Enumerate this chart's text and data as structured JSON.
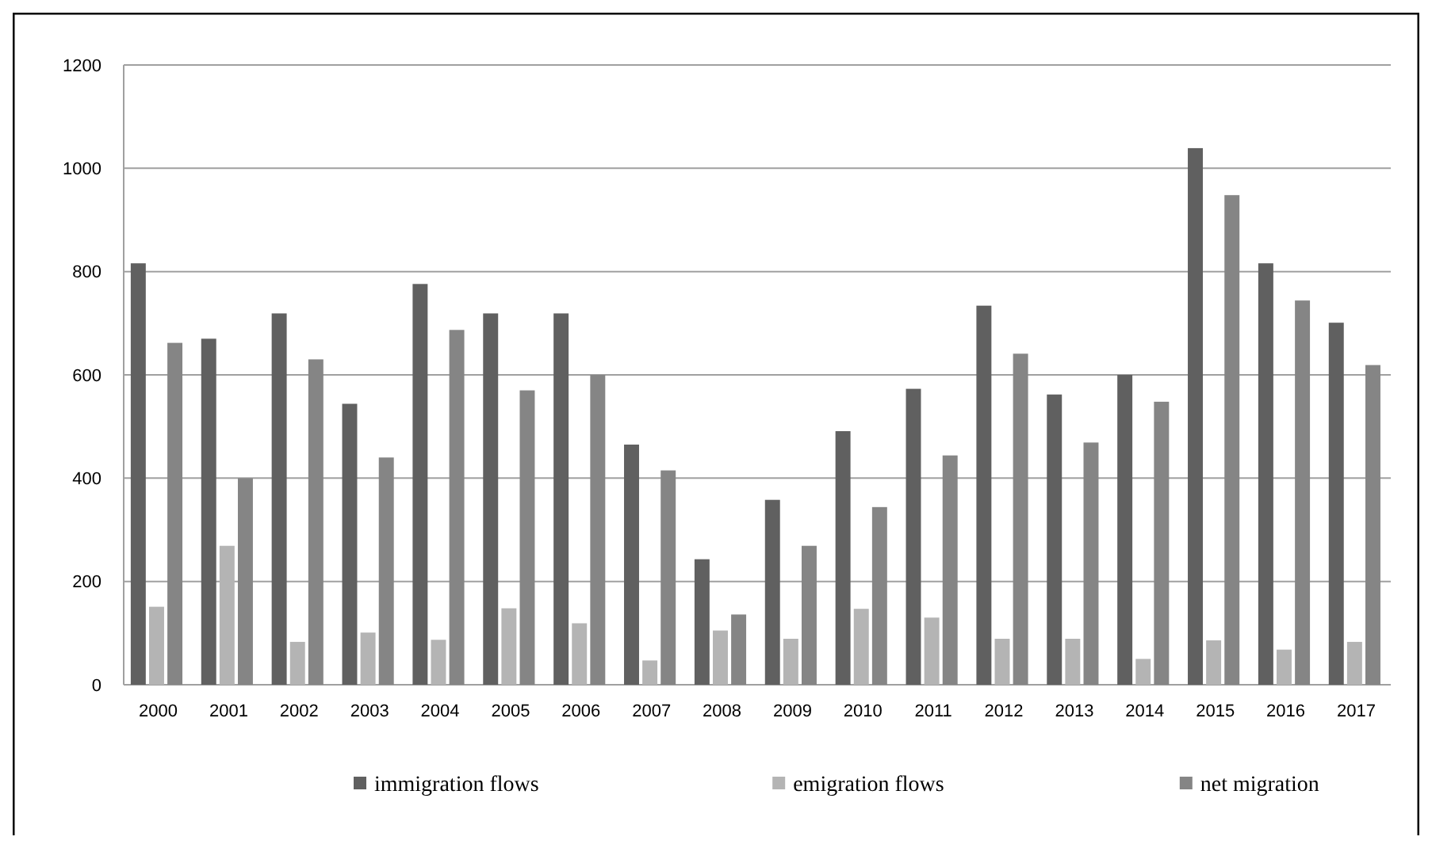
{
  "chart_data": {
    "type": "bar",
    "categories": [
      "2000",
      "2001",
      "2002",
      "2003",
      "2004",
      "2005",
      "2006",
      "2007",
      "2008",
      "2009",
      "2010",
      "2011",
      "2012",
      "2013",
      "2014",
      "2015",
      "2016",
      "2017"
    ],
    "series": [
      {
        "name": "immigration flows",
        "color": "#606060",
        "values": [
          816,
          670,
          719,
          544,
          776,
          719,
          719,
          465,
          243,
          358,
          491,
          573,
          734,
          562,
          600,
          1039,
          816,
          701
        ]
      },
      {
        "name": "emigration flows",
        "color": "#b4b4b4",
        "values": [
          151,
          269,
          83,
          101,
          87,
          148,
          119,
          47,
          105,
          89,
          147,
          130,
          89,
          89,
          50,
          86,
          68,
          83
        ]
      },
      {
        "name": "net migration",
        "color": "#858585",
        "values": [
          662,
          400,
          630,
          440,
          687,
          570,
          600,
          415,
          136,
          269,
          344,
          444,
          641,
          469,
          548,
          948,
          744,
          619
        ]
      }
    ],
    "ylim": [
      0,
      1200
    ],
    "yticks": [
      0,
      200,
      400,
      600,
      800,
      1000,
      1200
    ],
    "grid": "y",
    "legend": "bottom"
  }
}
